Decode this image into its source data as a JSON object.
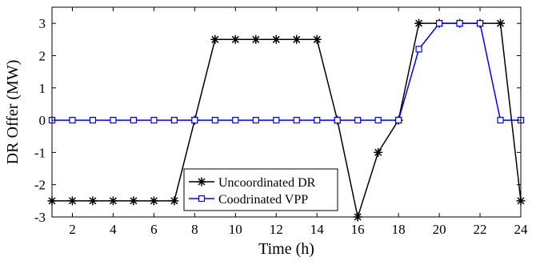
{
  "chart_data": {
    "type": "line",
    "title": "",
    "xlabel": "Time (h)",
    "ylabel": "DR Offer (MW)",
    "xlim": [
      1,
      24
    ],
    "ylim": [
      -3,
      3.5
    ],
    "xticks": [
      2,
      4,
      6,
      8,
      10,
      12,
      14,
      16,
      18,
      20,
      22,
      24
    ],
    "yticks": [
      -3,
      -2,
      -1,
      0,
      1,
      2,
      3
    ],
    "grid": false,
    "legend_position": "bottom-center",
    "x": [
      1,
      2,
      3,
      4,
      5,
      6,
      7,
      8,
      9,
      10,
      11,
      12,
      13,
      14,
      15,
      16,
      17,
      18,
      19,
      20,
      21,
      22,
      23,
      24
    ],
    "series": [
      {
        "name": "Uncoordinated DR",
        "color": "#000000",
        "marker": "asterisk",
        "values": [
          -2.5,
          -2.5,
          -2.5,
          -2.5,
          -2.5,
          -2.5,
          -2.5,
          0,
          2.5,
          2.5,
          2.5,
          2.5,
          2.5,
          2.5,
          0,
          -3,
          -1,
          0,
          3,
          3,
          3,
          3,
          3,
          -2.5
        ]
      },
      {
        "name": "Coodrinated VPP",
        "color": "#0000ff",
        "marker": "square",
        "values": [
          0,
          0,
          0,
          0,
          0,
          0,
          0,
          0,
          0,
          0,
          0,
          0,
          0,
          0,
          0,
          0,
          0,
          0,
          2.2,
          3,
          3,
          3,
          0,
          0
        ]
      }
    ]
  }
}
